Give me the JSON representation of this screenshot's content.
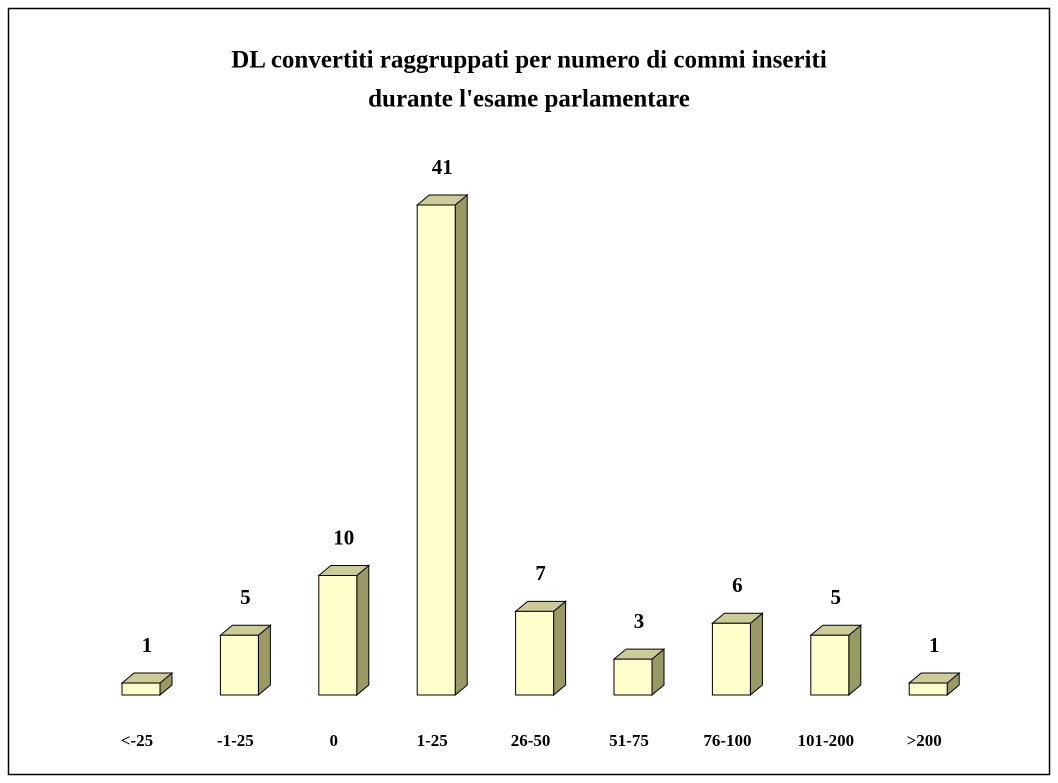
{
  "chart_data": {
    "type": "bar3d",
    "title": [
      "DL convertiti raggruppati per numero di commi inseriti",
      "durante l'esame parlamentare"
    ],
    "categories": [
      "<-25",
      "-1-25",
      "0",
      "1-25",
      "26-50",
      "51-75",
      "76-100",
      "101-200",
      ">200"
    ],
    "values": [
      1,
      5,
      10,
      41,
      7,
      3,
      6,
      5,
      1
    ],
    "color": "#ffffcc"
  }
}
